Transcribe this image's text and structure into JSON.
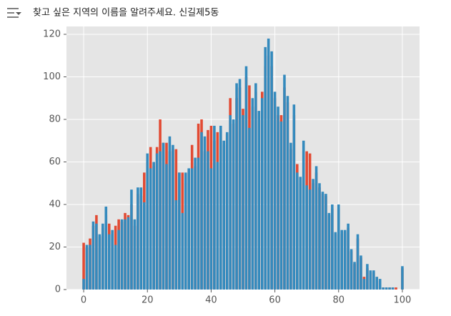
{
  "prompt": "찾고 싶은 지역의 이름을 알려주세요.  신길제5동",
  "chart_data": {
    "type": "bar",
    "x": [
      0,
      1,
      2,
      3,
      4,
      5,
      6,
      7,
      8,
      9,
      10,
      11,
      12,
      13,
      14,
      15,
      16,
      17,
      18,
      19,
      20,
      21,
      22,
      23,
      24,
      25,
      26,
      27,
      28,
      29,
      30,
      31,
      32,
      33,
      34,
      35,
      36,
      37,
      38,
      39,
      40,
      41,
      42,
      43,
      44,
      45,
      46,
      47,
      48,
      49,
      50,
      51,
      52,
      53,
      54,
      55,
      56,
      57,
      58,
      59,
      60,
      61,
      62,
      63,
      64,
      65,
      66,
      67,
      68,
      69,
      70,
      71,
      72,
      73,
      74,
      75,
      76,
      77,
      78,
      79,
      80,
      81,
      82,
      83,
      84,
      85,
      86,
      87,
      88,
      89,
      90,
      91,
      92,
      93,
      94,
      95,
      96,
      97,
      98,
      99,
      100
    ],
    "series": [
      {
        "color": "#E24A33",
        "values": [
          22,
          20,
          24,
          30,
          35,
          25,
          29,
          35,
          31,
          26,
          30,
          33,
          32,
          36,
          35,
          40,
          30,
          45,
          44,
          55,
          60,
          67,
          58,
          67,
          80,
          69,
          69,
          65,
          66,
          66,
          55,
          55,
          50,
          55,
          68,
          58,
          78,
          80,
          65,
          75,
          77,
          70,
          74,
          75,
          68,
          73,
          90,
          78,
          90,
          95,
          85,
          100,
          96,
          86,
          93,
          80,
          93,
          105,
          110,
          105,
          90,
          82,
          82,
          95,
          88,
          66,
          82,
          59,
          50,
          65,
          65,
          64,
          50,
          55,
          48,
          45,
          44,
          35,
          38,
          26,
          38,
          26,
          27,
          29,
          18,
          12,
          24,
          15,
          6,
          10,
          8,
          8,
          5,
          4,
          1,
          1,
          1,
          1,
          1,
          0,
          10
        ]
      },
      {
        "color": "#348ABD",
        "values": [
          5,
          21,
          21,
          32,
          31,
          26,
          31,
          39,
          26,
          28,
          21,
          28,
          33,
          33,
          34,
          47,
          33,
          48,
          48,
          41,
          64,
          57,
          60,
          64,
          65,
          69,
          59,
          72,
          68,
          42,
          55,
          36,
          55,
          57,
          57,
          62,
          62,
          74,
          72,
          65,
          57,
          77,
          60,
          77,
          70,
          74,
          82,
          80,
          97,
          99,
          82,
          105,
          76,
          90,
          97,
          84,
          90,
          114,
          118,
          112,
          93,
          86,
          79,
          101,
          91,
          69,
          87,
          55,
          53,
          70,
          49,
          47,
          52,
          58,
          50,
          46,
          45,
          36,
          40,
          27,
          40,
          28,
          28,
          31,
          19,
          13,
          26,
          16,
          5,
          12,
          9,
          9,
          6,
          5,
          1,
          1,
          1,
          1,
          0,
          0,
          11
        ]
      }
    ],
    "xlim": [
      -5.4,
      105.4
    ],
    "xticks": [
      0,
      20,
      40,
      60,
      80,
      100
    ],
    "ylim": [
      0,
      123.7
    ],
    "yticks": [
      0,
      20,
      40,
      60,
      80,
      100,
      120
    ],
    "grid": true
  }
}
